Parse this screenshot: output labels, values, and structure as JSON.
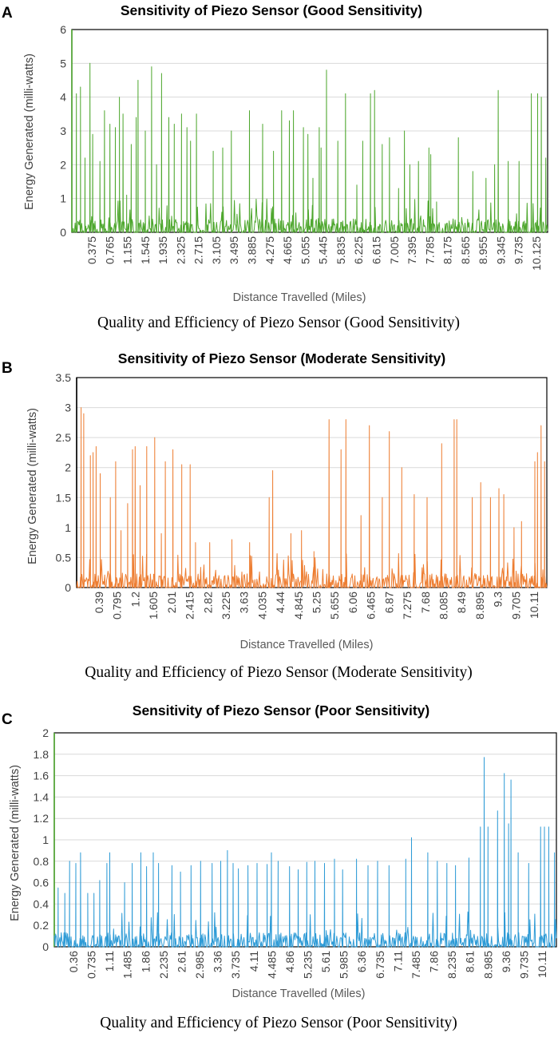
{
  "chart_data": [
    {
      "type": "line",
      "panel_label": "A",
      "title": "Sensitivity of Piezo Sensor (Good Sensitivity)",
      "xlabel": "Distance Travelled  (Miles)",
      "ylabel": "Energy Generated (milli-watts)",
      "ylim": [
        0,
        6
      ],
      "yticks": [
        "0",
        "1",
        "2",
        "3",
        "4",
        "5",
        "6"
      ],
      "x_tick_labels": [
        "0.375",
        "0.765",
        "1.155",
        "1.545",
        "1.935",
        "2.325",
        "2.715",
        "3.105",
        "3.495",
        "3.885",
        "4.275",
        "4.665",
        "5.055",
        "5.445",
        "5.835",
        "6.225",
        "6.615",
        "7.005",
        "7.395",
        "7.785",
        "8.175",
        "8.565",
        "8.955",
        "9.345",
        "9.735",
        "10.125"
      ],
      "x_range": [
        0.0,
        10.5
      ],
      "color": "#4ea72e",
      "axis_color": "#4ea72e",
      "series": [
        {
          "name": "Energy Generated",
          "peaks": [
            [
              0.1,
              4.1
            ],
            [
              0.19,
              4.3
            ],
            [
              0.29,
              2.2
            ],
            [
              0.4,
              5.0
            ],
            [
              0.46,
              2.9
            ],
            [
              0.62,
              2.1
            ],
            [
              0.72,
              3.6
            ],
            [
              0.84,
              3.2
            ],
            [
              0.96,
              3.1
            ],
            [
              1.05,
              4.0
            ],
            [
              1.13,
              3.5
            ],
            [
              1.21,
              1.1
            ],
            [
              1.31,
              2.6
            ],
            [
              1.42,
              3.4
            ],
            [
              1.46,
              4.5
            ],
            [
              1.62,
              3.0
            ],
            [
              1.76,
              4.9
            ],
            [
              1.87,
              2.0
            ],
            [
              1.98,
              4.7
            ],
            [
              2.14,
              3.4
            ],
            [
              2.26,
              3.2
            ],
            [
              2.42,
              3.5
            ],
            [
              2.54,
              3.1
            ],
            [
              2.62,
              2.7
            ],
            [
              2.75,
              3.5
            ],
            [
              3.12,
              2.4
            ],
            [
              3.33,
              2.5
            ],
            [
              3.52,
              3.0
            ],
            [
              3.92,
              3.6
            ],
            [
              4.21,
              3.2
            ],
            [
              4.45,
              2.4
            ],
            [
              4.63,
              3.6
            ],
            [
              4.8,
              3.3
            ],
            [
              4.89,
              3.6
            ],
            [
              5.11,
              3.1
            ],
            [
              5.21,
              2.9
            ],
            [
              5.32,
              1.6
            ],
            [
              5.46,
              3.1
            ],
            [
              5.5,
              2.5
            ],
            [
              5.62,
              4.8
            ],
            [
              5.87,
              2.7
            ],
            [
              6.04,
              4.1
            ],
            [
              6.29,
              1.4
            ],
            [
              6.42,
              2.7
            ],
            [
              6.59,
              4.1
            ],
            [
              6.68,
              4.2
            ],
            [
              6.85,
              2.6
            ],
            [
              7.01,
              2.8
            ],
            [
              7.21,
              1.3
            ],
            [
              7.34,
              3.0
            ],
            [
              7.46,
              2.0
            ],
            [
              7.65,
              2.1
            ],
            [
              7.88,
              2.5
            ],
            [
              7.92,
              2.3
            ],
            [
              8.05,
              0.9
            ],
            [
              8.53,
              2.8
            ],
            [
              8.85,
              1.8
            ],
            [
              9.14,
              1.6
            ],
            [
              9.33,
              2.0
            ],
            [
              9.41,
              4.2
            ],
            [
              9.63,
              2.1
            ],
            [
              9.87,
              2.1
            ],
            [
              10.14,
              4.1
            ],
            [
              10.28,
              4.1
            ],
            [
              10.36,
              4.0
            ],
            [
              10.46,
              2.2
            ]
          ]
        }
      ]
    },
    {
      "type": "line",
      "panel_label": "B",
      "title": "Sensitivity of Piezo Sensor (Moderate Sensitivity)",
      "xlabel": "Distance Travelled (Miles)",
      "ylabel": "Energy Generated  (milli-watts)",
      "ylim": [
        0,
        3.5
      ],
      "yticks": [
        "0",
        "0.5",
        "1",
        "1.5",
        "2",
        "2.5",
        "3",
        "3.5"
      ],
      "x_tick_labels": [
        "0.39",
        "0.795",
        "1.2",
        "1.605",
        "2.01",
        "2.415",
        "2.82",
        "3.225",
        "3.63",
        "4.035",
        "4.44",
        "4.845",
        "5.25",
        "5.655",
        "6.06",
        "6.465",
        "6.87",
        "7.275",
        "7.68",
        "8.085",
        "8.49",
        "8.895",
        "9.3",
        "9.705",
        "10.11"
      ],
      "x_range": [
        0.0,
        10.6
      ],
      "color": "#ed7d31",
      "axis_color": "#000000",
      "series": [
        {
          "name": "Energy Generated",
          "peaks": [
            [
              0.1,
              3.0
            ],
            [
              0.16,
              2.9
            ],
            [
              0.31,
              2.2
            ],
            [
              0.37,
              2.25
            ],
            [
              0.44,
              2.35
            ],
            [
              0.53,
              1.9
            ],
            [
              0.76,
              1.5
            ],
            [
              0.88,
              2.1
            ],
            [
              1.0,
              0.95
            ],
            [
              1.15,
              1.4
            ],
            [
              1.26,
              2.3
            ],
            [
              1.32,
              2.35
            ],
            [
              1.43,
              1.7
            ],
            [
              1.58,
              2.35
            ],
            [
              1.76,
              2.5
            ],
            [
              1.91,
              0.9
            ],
            [
              2.0,
              2.1
            ],
            [
              2.17,
              2.3
            ],
            [
              2.37,
              2.05
            ],
            [
              2.56,
              2.05
            ],
            [
              2.68,
              0.75
            ],
            [
              3.0,
              0.75
            ],
            [
              3.5,
              0.8
            ],
            [
              3.9,
              0.75
            ],
            [
              4.34,
              1.5
            ],
            [
              4.42,
              1.95
            ],
            [
              4.83,
              0.9
            ],
            [
              5.07,
              0.95
            ],
            [
              5.35,
              0.6
            ],
            [
              5.69,
              2.8
            ],
            [
              5.96,
              2.3
            ],
            [
              6.07,
              2.8
            ],
            [
              6.41,
              1.2
            ],
            [
              6.6,
              2.7
            ],
            [
              6.89,
              1.5
            ],
            [
              7.05,
              2.6
            ],
            [
              7.33,
              2.0
            ],
            [
              7.61,
              1.55
            ],
            [
              7.9,
              1.5
            ],
            [
              8.23,
              2.4
            ],
            [
              8.51,
              2.8
            ],
            [
              8.57,
              2.8
            ],
            [
              8.92,
              1.5
            ],
            [
              9.11,
              1.75
            ],
            [
              9.33,
              1.5
            ],
            [
              9.52,
              1.65
            ],
            [
              9.63,
              1.55
            ],
            [
              9.86,
              1.0
            ],
            [
              10.03,
              1.1
            ],
            [
              10.33,
              2.1
            ],
            [
              10.39,
              2.25
            ],
            [
              10.47,
              2.7
            ],
            [
              10.55,
              2.1
            ]
          ]
        }
      ]
    },
    {
      "type": "line",
      "panel_label": "C",
      "title": "Sensitivity of Piezo Sensor (Poor Sensitivity)",
      "xlabel": "Distance Travelled  (Miles)",
      "ylabel": "Energy Generated (milli-watts)",
      "ylim": [
        0,
        2
      ],
      "yticks": [
        "0",
        "0.2",
        "0.4",
        "0.6",
        "0.8",
        "1",
        "1.2",
        "1.4",
        "1.6",
        "1.8",
        "2"
      ],
      "x_tick_labels": [
        "0.36",
        "0.735",
        "1.11",
        "1.485",
        "1.86",
        "2.235",
        "2.61",
        "2.985",
        "3.36",
        "3.735",
        "4.11",
        "4.485",
        "4.86",
        "5.235",
        "5.61",
        "5.985",
        "6.36",
        "6.735",
        "7.11",
        "7.485",
        "7.86",
        "8.235",
        "8.61",
        "8.985",
        "9.36",
        "9.735",
        "10.11"
      ],
      "x_range": [
        0.0,
        10.5
      ],
      "color": "#2e9bd6",
      "axis_color": "#4ea72e",
      "series": [
        {
          "name": "Energy Generated",
          "peaks": [
            [
              0.08,
              0.55
            ],
            [
              0.22,
              0.5
            ],
            [
              0.32,
              0.8
            ],
            [
              0.45,
              0.78
            ],
            [
              0.55,
              0.88
            ],
            [
              0.7,
              0.5
            ],
            [
              0.83,
              0.5
            ],
            [
              0.95,
              0.62
            ],
            [
              1.1,
              0.78
            ],
            [
              1.16,
              0.88
            ],
            [
              1.47,
              0.6
            ],
            [
              1.63,
              0.78
            ],
            [
              1.81,
              0.88
            ],
            [
              1.93,
              0.75
            ],
            [
              2.07,
              0.88
            ],
            [
              2.18,
              0.78
            ],
            [
              2.46,
              0.76
            ],
            [
              2.64,
              0.7
            ],
            [
              2.86,
              0.76
            ],
            [
              3.06,
              0.8
            ],
            [
              3.3,
              0.78
            ],
            [
              3.48,
              0.8
            ],
            [
              3.62,
              0.9
            ],
            [
              3.74,
              0.78
            ],
            [
              3.85,
              0.73
            ],
            [
              4.05,
              0.76
            ],
            [
              4.24,
              0.78
            ],
            [
              4.45,
              0.77
            ],
            [
              4.54,
              0.88
            ],
            [
              4.68,
              0.8
            ],
            [
              4.92,
              0.75
            ],
            [
              5.1,
              0.72
            ],
            [
              5.28,
              0.79
            ],
            [
              5.45,
              0.8
            ],
            [
              5.65,
              0.78
            ],
            [
              5.86,
              0.82
            ],
            [
              6.03,
              0.72
            ],
            [
              6.32,
              0.82
            ],
            [
              6.56,
              0.76
            ],
            [
              6.76,
              0.8
            ],
            [
              7.0,
              0.76
            ],
            [
              7.35,
              0.82
            ],
            [
              7.47,
              1.02
            ],
            [
              7.81,
              0.88
            ],
            [
              8.01,
              0.8
            ],
            [
              8.21,
              0.78
            ],
            [
              8.39,
              0.76
            ],
            [
              8.67,
              0.83
            ],
            [
              8.91,
              1.12
            ],
            [
              8.99,
              1.77
            ],
            [
              9.07,
              1.12
            ],
            [
              9.27,
              1.27
            ],
            [
              9.41,
              1.62
            ],
            [
              9.5,
              1.15
            ],
            [
              9.55,
              1.56
            ],
            [
              9.7,
              0.88
            ],
            [
              9.92,
              0.78
            ],
            [
              10.17,
              1.12
            ],
            [
              10.25,
              1.12
            ],
            [
              10.34,
              1.12
            ],
            [
              10.46,
              0.88
            ]
          ]
        }
      ]
    }
  ],
  "captions": [
    "Quality and Efficiency of Piezo Sensor (Good Sensitivity)",
    "Quality and Efficiency of Piezo Sensor (Moderate Sensitivity)",
    "Quality and Efficiency of Piezo Sensor (Poor Sensitivity)"
  ]
}
